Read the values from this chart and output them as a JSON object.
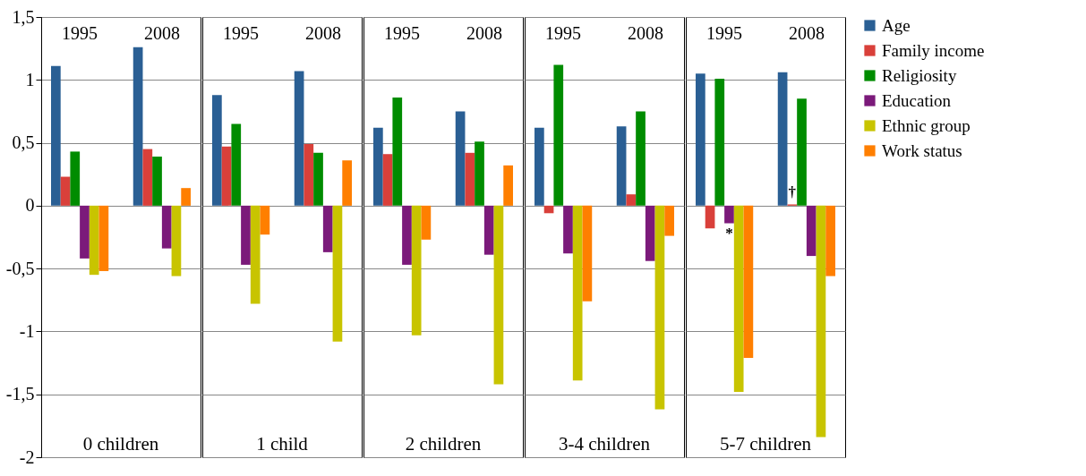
{
  "chart_data": [
    {
      "type": "bar",
      "xlabel": "0 children",
      "categories": [
        "1995",
        "2008"
      ],
      "ylim": [
        -2,
        1.5
      ],
      "yticks": [
        {
          "value": 1.5,
          "label": "1,5"
        },
        1,
        {
          "value": 0.5,
          "label": "0,5"
        },
        0,
        {
          "value": -0.5,
          "label": "-0,5"
        },
        -1,
        {
          "value": -1.5,
          "label": "-1,5"
        },
        -2
      ],
      "grid": "y",
      "series": [
        {
          "color": "#2a5f94",
          "values": [
            1.11,
            1.26
          ]
        },
        {
          "color": "#d9403a",
          "values": [
            0.23,
            0.45
          ]
        },
        {
          "color": "#008c00",
          "values": [
            0.43,
            0.39
          ]
        },
        {
          "color": "#7b1a7a",
          "values": [
            -0.42,
            -0.34
          ]
        },
        {
          "color": "#c8c400",
          "values": [
            -0.55,
            -0.56
          ]
        },
        {
          "color": "#ff7f00",
          "values": [
            -0.52,
            0.14
          ]
        }
      ]
    },
    {
      "type": "bar",
      "xlabel": "1 child",
      "categories": [
        "1995",
        "2008"
      ],
      "ylim": [
        -2,
        1.5
      ],
      "yticks": [
        1.5,
        1,
        0.5,
        0,
        -0.5,
        -1,
        -1.5,
        -2
      ],
      "grid": "y",
      "tick_labels": "x",
      "series": [
        {
          "color": "#2a5f94",
          "values": [
            0.88,
            1.07
          ]
        },
        {
          "color": "#d9403a",
          "values": [
            0.47,
            0.49
          ]
        },
        {
          "color": "#008c00",
          "values": [
            0.65,
            0.42
          ]
        },
        {
          "color": "#7b1a7a",
          "values": [
            -0.47,
            -0.37
          ]
        },
        {
          "color": "#c8c400",
          "values": [
            -0.78,
            -1.08
          ]
        },
        {
          "color": "#ff7f00",
          "values": [
            -0.23,
            0.36
          ]
        }
      ]
    },
    {
      "type": "bar",
      "xlabel": "2 children",
      "categories": [
        "1995",
        "2008"
      ],
      "ylim": [
        -2,
        1.5
      ],
      "yticks": [
        1.5,
        1,
        0.5,
        0,
        -0.5,
        -1,
        -1.5,
        -2
      ],
      "grid": "y",
      "tick_labels": "x",
      "series": [
        {
          "color": "#2a5f94",
          "values": [
            0.62,
            0.75
          ]
        },
        {
          "color": "#d9403a",
          "values": [
            0.41,
            0.42
          ]
        },
        {
          "color": "#008c00",
          "values": [
            0.86,
            0.51
          ]
        },
        {
          "color": "#7b1a7a",
          "values": [
            -0.47,
            -0.39
          ]
        },
        {
          "color": "#c8c400",
          "values": [
            -1.03,
            -1.42
          ]
        },
        {
          "color": "#ff7f00",
          "values": [
            -0.27,
            0.32
          ]
        }
      ]
    },
    {
      "type": "bar",
      "xlabel": "3-4 children",
      "categories": [
        "1995",
        "2008"
      ],
      "ylim": [
        -2,
        1.5
      ],
      "yticks": [
        1.5,
        1,
        0.5,
        0,
        -0.5,
        -1,
        -1.5,
        -2
      ],
      "grid": "y",
      "tick_labels": "x",
      "series": [
        {
          "color": "#2a5f94",
          "values": [
            0.62,
            0.63
          ]
        },
        {
          "color": "#d9403a",
          "values": [
            -0.06,
            0.09
          ]
        },
        {
          "color": "#008c00",
          "values": [
            1.12,
            0.75
          ]
        },
        {
          "color": "#7b1a7a",
          "values": [
            -0.38,
            -0.44
          ]
        },
        {
          "color": "#c8c400",
          "values": [
            -1.39,
            -1.62
          ]
        },
        {
          "color": "#ff7f00",
          "values": [
            -0.76,
            -0.24
          ]
        }
      ]
    },
    {
      "type": "bar",
      "xlabel": "5-7 children",
      "categories": [
        "1995",
        "2008"
      ],
      "ylim": [
        -2,
        1.5
      ],
      "yticks": [
        1.5,
        1,
        0.5,
        0,
        -0.5,
        -1,
        -1.5,
        -2
      ],
      "grid": "y",
      "legend": "right",
      "tick_labels": "x",
      "annotations": [
        {
          "text": "*",
          "x": "1995",
          "y": -0.14
        },
        {
          "text": "†",
          "x": "2008",
          "y": 0.01
        }
      ],
      "series": [
        {
          "name": "Age",
          "color": "#2a5f94",
          "values": [
            1.05,
            1.06
          ]
        },
        {
          "name": "Family income",
          "color": "#d9403a",
          "values": [
            -0.18,
            0.01
          ]
        },
        {
          "name": "Religiosity",
          "color": "#008c00",
          "values": [
            1.01,
            0.85
          ]
        },
        {
          "name": "Education",
          "color": "#7b1a7a",
          "values": [
            -0.14,
            -0.4
          ]
        },
        {
          "name": "Ethnic group",
          "color": "#c8c400",
          "values": [
            -1.48,
            -1.84
          ]
        },
        {
          "name": "Work status",
          "color": "#ff7f00",
          "values": [
            -1.21,
            -0.56
          ]
        }
      ]
    }
  ]
}
